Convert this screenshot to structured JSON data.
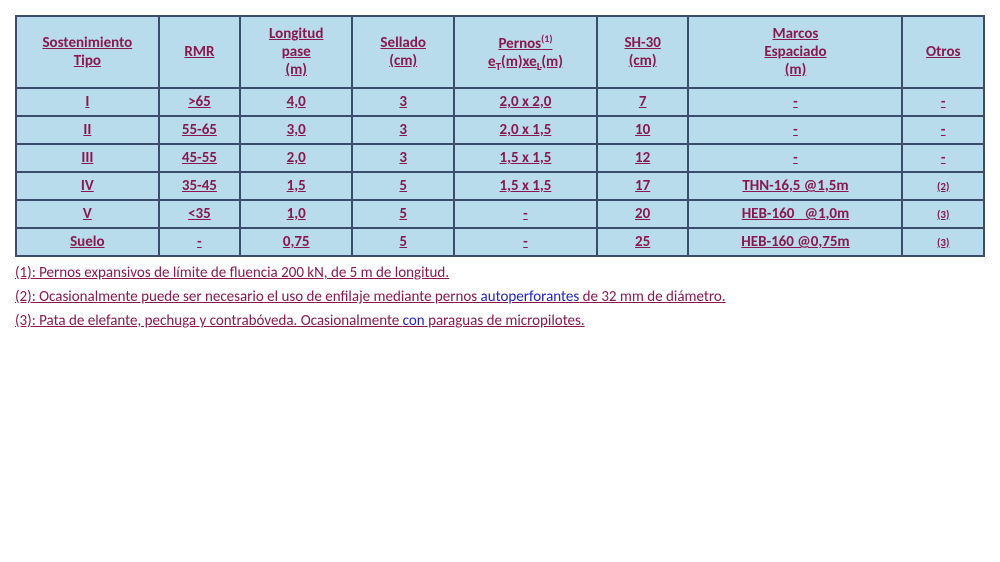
{
  "table": {
    "background_color": "#b8dceb",
    "border_color": "#3a4d6b",
    "text_color": "#8a1850",
    "header_fontsize": 15,
    "cell_fontsize": 15,
    "columns": [
      {
        "key": "tipo",
        "lines": [
          "Sostenimiento",
          "Tipo"
        ],
        "width_pct": 14
      },
      {
        "key": "rmr",
        "lines": [
          "RMR"
        ],
        "width_pct": 8
      },
      {
        "key": "longitud",
        "lines": [
          "Longitud",
          "pase",
          "(m)"
        ],
        "width_pct": 11
      },
      {
        "key": "sellado",
        "lines": [
          "Sellado",
          "(cm)"
        ],
        "width_pct": 10
      },
      {
        "key": "pernos",
        "lines_special": "pernos",
        "width_pct": 14
      },
      {
        "key": "sh30",
        "lines": [
          "SH-30",
          "(cm)"
        ],
        "width_pct": 9
      },
      {
        "key": "marcos",
        "lines": [
          "Marcos",
          "Espaciado",
          "(m)"
        ],
        "width_pct": 21
      },
      {
        "key": "otros",
        "lines": [
          "Otros"
        ],
        "width_pct": 8
      }
    ],
    "pernos_header": {
      "line1_pre": "Pernos",
      "line1_sup": "(1)",
      "line2_pre": "e",
      "line2_sub1": "T",
      "line2_mid": "(m)xe",
      "line2_sub2": "L",
      "line2_post": "(m)"
    },
    "rows": [
      {
        "tipo": "I",
        "rmr": ">65",
        "longitud": "4,0",
        "sellado": "3",
        "pernos": "2,0 x 2,0",
        "sh30": "7",
        "marcos": "-",
        "otros": "-"
      },
      {
        "tipo": "II",
        "rmr": "55-65",
        "longitud": "3,0",
        "sellado": "3",
        "pernos": "2,0 x 1,5",
        "sh30": "10",
        "marcos": "-",
        "otros": "-"
      },
      {
        "tipo": "III",
        "rmr": "45-55",
        "longitud": "2,0",
        "sellado": "3",
        "pernos": "1,5 x 1,5",
        "sh30": "12",
        "marcos": "-",
        "otros": "-"
      },
      {
        "tipo": "IV",
        "rmr": "35-45",
        "longitud": "1,5",
        "sellado": "5",
        "pernos": "1,5 x 1,5",
        "sh30": "17",
        "marcos": "THN-16,5 @1,5m",
        "otros": "(2)",
        "otros_small": true
      },
      {
        "tipo": "V",
        "rmr": "<35",
        "longitud": "1,0",
        "sellado": "5",
        "pernos": "-",
        "sh30": "20",
        "marcos": "HEB-160   @1,0m",
        "otros": "(3)",
        "otros_small": true
      },
      {
        "tipo": "Suelo",
        "rmr": "-",
        "longitud": "0,75",
        "sellado": "5",
        "pernos": "-",
        "sh30": "25",
        "marcos": "HEB-160 @0,75m",
        "otros": "(3)",
        "otros_small": true
      }
    ]
  },
  "footnotes": {
    "n1": "(1): Pernos expansivos de límite de fluencia 200 kN, de 5 m de longitud.",
    "n2_pre": "(2): Ocasionalmente  puede  ser  necesario  el  uso  de  enfilaje  mediante  pernos ",
    "n2_blue": "autoperforantes",
    "n2_post": " de  32  mm  de diámetro.",
    "n3_pre": "(3): Pata de elefante, pechuga y contrabóveda. Ocasionalmente ",
    "n3_blue": "con",
    "n3_post": " paraguas de micropilotes."
  }
}
